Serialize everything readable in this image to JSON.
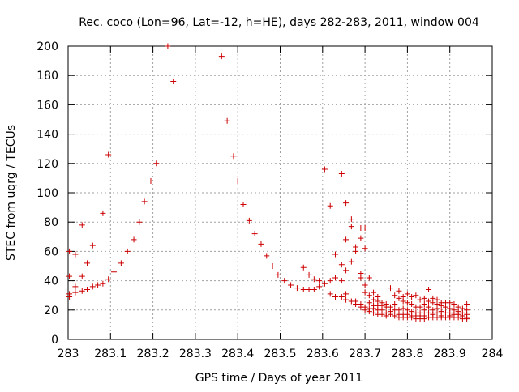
{
  "chart_data": {
    "type": "scatter",
    "title": "Rec. coco (Lon=96, Lat=-12, h=HE), days 282-283, 2011, window 004",
    "xlabel": "GPS time / Days of year 2011",
    "ylabel": "STEC from uqrg / TECUs",
    "xlim": [
      283,
      284
    ],
    "ylim": [
      0,
      200
    ],
    "x_ticks": [
      "283",
      "283.1",
      "283.2",
      "283.3",
      "283.4",
      "283.5",
      "283.6",
      "283.7",
      "283.8",
      "283.9",
      "284"
    ],
    "y_ticks": [
      "0",
      "20",
      "40",
      "60",
      "80",
      "100",
      "120",
      "140",
      "160",
      "180",
      "200"
    ],
    "grid": true,
    "legend": "none",
    "marker": "+",
    "color": "#cc0000",
    "series": [
      {
        "points": [
          [
            283.003,
            60
          ],
          [
            283.003,
            43
          ],
          [
            283.003,
            31
          ],
          [
            283.003,
            29
          ],
          [
            283.017,
            58
          ],
          [
            283.017,
            36
          ],
          [
            283.017,
            32
          ],
          [
            283.033,
            78
          ],
          [
            283.033,
            43
          ],
          [
            283.033,
            33
          ],
          [
            283.045,
            52
          ],
          [
            283.045,
            34
          ],
          [
            283.058,
            64
          ],
          [
            283.058,
            36
          ],
          [
            283.07,
            37
          ],
          [
            283.082,
            86
          ],
          [
            283.082,
            38
          ],
          [
            283.095,
            126
          ],
          [
            283.095,
            41
          ],
          [
            283.108,
            46
          ],
          [
            283.125,
            52
          ],
          [
            283.14,
            60
          ],
          [
            283.155,
            68
          ],
          [
            283.168,
            80
          ],
          [
            283.18,
            94
          ],
          [
            283.195,
            108
          ],
          [
            283.208,
            120
          ],
          [
            283.235,
            200
          ],
          [
            283.248,
            176
          ],
          [
            283.362,
            193
          ],
          [
            283.375,
            149
          ],
          [
            283.39,
            125
          ],
          [
            283.4,
            108
          ],
          [
            283.413,
            92
          ],
          [
            283.427,
            81
          ],
          [
            283.44,
            72
          ],
          [
            283.455,
            65
          ],
          [
            283.468,
            57
          ],
          [
            283.482,
            50
          ],
          [
            283.495,
            44
          ],
          [
            283.51,
            40
          ],
          [
            283.525,
            37
          ],
          [
            283.54,
            35
          ],
          [
            283.555,
            34
          ],
          [
            283.555,
            49
          ],
          [
            283.568,
            34
          ],
          [
            283.568,
            44
          ],
          [
            283.58,
            34
          ],
          [
            283.58,
            41
          ],
          [
            283.592,
            36
          ],
          [
            283.592,
            40
          ],
          [
            283.605,
            38
          ],
          [
            283.605,
            116
          ],
          [
            283.618,
            40
          ],
          [
            283.618,
            91
          ],
          [
            283.618,
            31
          ],
          [
            283.63,
            58
          ],
          [
            283.63,
            42
          ],
          [
            283.63,
            29
          ],
          [
            283.645,
            51
          ],
          [
            283.645,
            40
          ],
          [
            283.645,
            113
          ],
          [
            283.645,
            29
          ],
          [
            283.655,
            47
          ],
          [
            283.655,
            93
          ],
          [
            283.655,
            68
          ],
          [
            283.655,
            31
          ],
          [
            283.655,
            27
          ],
          [
            283.668,
            82
          ],
          [
            283.668,
            77
          ],
          [
            283.668,
            53
          ],
          [
            283.668,
            26
          ],
          [
            283.678,
            63
          ],
          [
            283.678,
            60
          ],
          [
            283.678,
            26
          ],
          [
            283.678,
            24
          ],
          [
            283.69,
            76
          ],
          [
            283.69,
            69
          ],
          [
            283.69,
            45
          ],
          [
            283.69,
            42
          ],
          [
            283.69,
            24
          ],
          [
            283.69,
            22
          ],
          [
            283.7,
            76
          ],
          [
            283.7,
            62
          ],
          [
            283.7,
            37
          ],
          [
            283.7,
            32
          ],
          [
            283.7,
            22
          ],
          [
            283.7,
            20
          ],
          [
            283.71,
            42
          ],
          [
            283.71,
            30
          ],
          [
            283.71,
            25
          ],
          [
            283.71,
            21
          ],
          [
            283.71,
            19
          ],
          [
            283.72,
            32
          ],
          [
            283.72,
            27
          ],
          [
            283.72,
            23
          ],
          [
            283.72,
            21
          ],
          [
            283.72,
            18
          ],
          [
            283.73,
            29
          ],
          [
            283.73,
            26
          ],
          [
            283.73,
            23
          ],
          [
            283.73,
            20
          ],
          [
            283.73,
            17
          ],
          [
            283.74,
            25
          ],
          [
            283.74,
            23
          ],
          [
            283.74,
            20
          ],
          [
            283.74,
            17
          ],
          [
            283.75,
            24
          ],
          [
            283.75,
            22
          ],
          [
            283.75,
            18
          ],
          [
            283.75,
            16
          ],
          [
            283.76,
            35
          ],
          [
            283.76,
            22
          ],
          [
            283.76,
            19
          ],
          [
            283.76,
            17
          ],
          [
            283.77,
            30
          ],
          [
            283.77,
            24
          ],
          [
            283.77,
            20
          ],
          [
            283.77,
            16
          ],
          [
            283.78,
            33
          ],
          [
            283.78,
            28
          ],
          [
            283.78,
            20
          ],
          [
            283.78,
            17
          ],
          [
            283.78,
            15
          ],
          [
            283.79,
            29
          ],
          [
            283.79,
            26
          ],
          [
            283.79,
            21
          ],
          [
            283.79,
            17
          ],
          [
            283.79,
            15
          ],
          [
            283.8,
            31
          ],
          [
            283.8,
            25
          ],
          [
            283.8,
            20
          ],
          [
            283.8,
            17
          ],
          [
            283.8,
            15
          ],
          [
            283.81,
            29
          ],
          [
            283.81,
            24
          ],
          [
            283.81,
            19
          ],
          [
            283.81,
            16
          ],
          [
            283.81,
            15
          ],
          [
            283.82,
            30
          ],
          [
            283.82,
            22
          ],
          [
            283.82,
            18
          ],
          [
            283.82,
            16
          ],
          [
            283.82,
            14
          ],
          [
            283.83,
            27
          ],
          [
            283.83,
            22
          ],
          [
            283.83,
            18
          ],
          [
            283.83,
            16
          ],
          [
            283.83,
            14
          ],
          [
            283.84,
            28
          ],
          [
            283.84,
            24
          ],
          [
            283.84,
            20
          ],
          [
            283.84,
            16
          ],
          [
            283.84,
            14
          ],
          [
            283.85,
            34
          ],
          [
            283.85,
            26
          ],
          [
            283.85,
            22
          ],
          [
            283.85,
            18
          ],
          [
            283.85,
            15
          ],
          [
            283.86,
            28
          ],
          [
            283.86,
            25
          ],
          [
            283.86,
            20
          ],
          [
            283.86,
            17
          ],
          [
            283.86,
            15
          ],
          [
            283.87,
            27
          ],
          [
            283.87,
            24
          ],
          [
            283.87,
            21
          ],
          [
            283.87,
            18
          ],
          [
            283.87,
            15
          ],
          [
            283.88,
            25
          ],
          [
            283.88,
            23
          ],
          [
            283.88,
            19
          ],
          [
            283.88,
            16
          ],
          [
            283.88,
            15
          ],
          [
            283.89,
            25
          ],
          [
            283.89,
            22
          ],
          [
            283.89,
            18
          ],
          [
            283.89,
            15
          ],
          [
            283.9,
            25
          ],
          [
            283.9,
            21
          ],
          [
            283.9,
            18
          ],
          [
            283.9,
            16
          ],
          [
            283.9,
            15
          ],
          [
            283.91,
            24
          ],
          [
            283.91,
            20
          ],
          [
            283.91,
            17
          ],
          [
            283.91,
            15
          ],
          [
            283.92,
            22
          ],
          [
            283.92,
            19
          ],
          [
            283.92,
            17
          ],
          [
            283.92,
            15
          ],
          [
            283.93,
            21
          ],
          [
            283.93,
            18
          ],
          [
            283.93,
            16
          ],
          [
            283.93,
            14
          ],
          [
            283.94,
            24
          ],
          [
            283.94,
            20
          ],
          [
            283.94,
            17
          ],
          [
            283.94,
            15
          ],
          [
            283.94,
            14
          ]
        ]
      }
    ]
  }
}
